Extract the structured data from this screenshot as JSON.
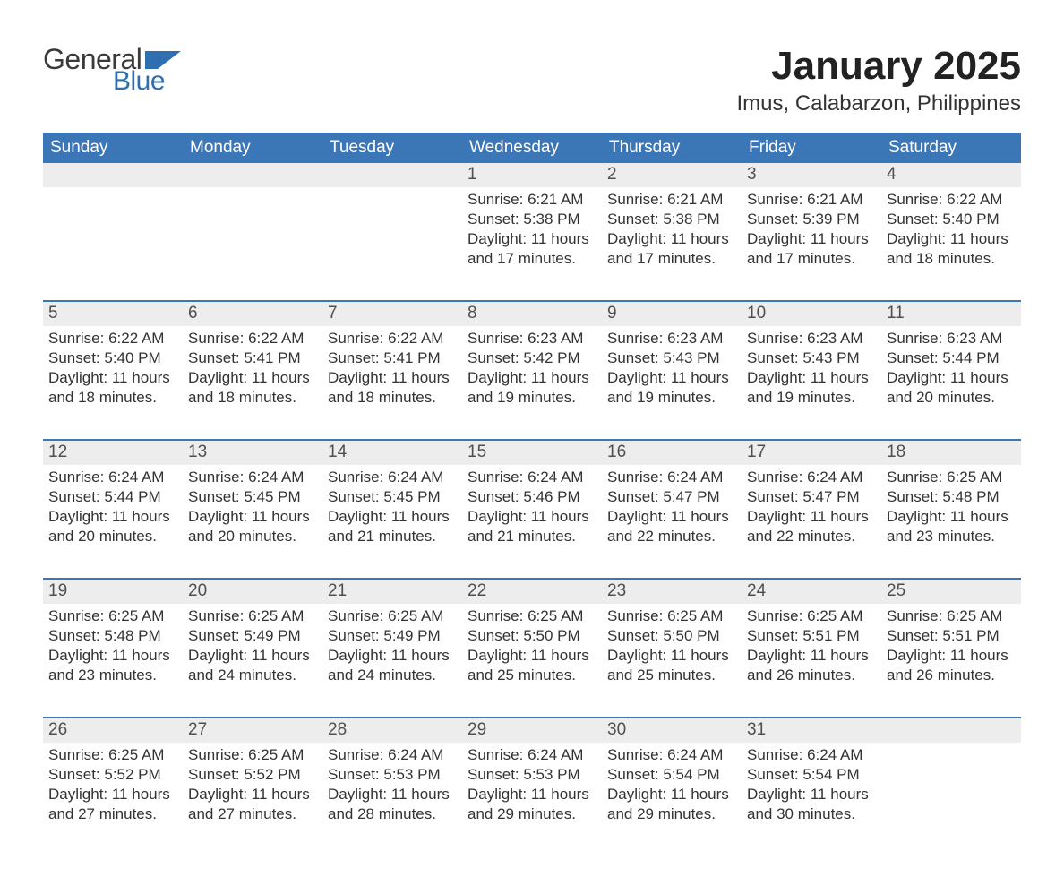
{
  "logo": {
    "text1": "General",
    "text2": "Blue",
    "shape_color": "#2f6fb0",
    "text1_color": "#3a3a3a",
    "text2_color": "#2f6fb0"
  },
  "title": "January 2025",
  "location": "Imus, Calabarzon, Philippines",
  "colors": {
    "header_bg": "#3b76b6",
    "header_text": "#ffffff",
    "daynum_bg": "#ededed",
    "daynum_text": "#4f4f4f",
    "body_text": "#333333",
    "week_divider": "#3b76b6",
    "page_bg": "#ffffff"
  },
  "typography": {
    "title_fontsize": 44,
    "location_fontsize": 24,
    "weekday_fontsize": 19,
    "daynum_fontsize": 19,
    "body_fontsize": 17,
    "font_family": "Arial"
  },
  "calendar": {
    "type": "table",
    "weekdays": [
      "Sunday",
      "Monday",
      "Tuesday",
      "Wednesday",
      "Thursday",
      "Friday",
      "Saturday"
    ],
    "weeks": [
      [
        {
          "day": "",
          "sunrise": "",
          "sunset": "",
          "daylight_l1": "",
          "daylight_l2": ""
        },
        {
          "day": "",
          "sunrise": "",
          "sunset": "",
          "daylight_l1": "",
          "daylight_l2": ""
        },
        {
          "day": "",
          "sunrise": "",
          "sunset": "",
          "daylight_l1": "",
          "daylight_l2": ""
        },
        {
          "day": "1",
          "sunrise": "Sunrise: 6:21 AM",
          "sunset": "Sunset: 5:38 PM",
          "daylight_l1": "Daylight: 11 hours",
          "daylight_l2": "and 17 minutes."
        },
        {
          "day": "2",
          "sunrise": "Sunrise: 6:21 AM",
          "sunset": "Sunset: 5:38 PM",
          "daylight_l1": "Daylight: 11 hours",
          "daylight_l2": "and 17 minutes."
        },
        {
          "day": "3",
          "sunrise": "Sunrise: 6:21 AM",
          "sunset": "Sunset: 5:39 PM",
          "daylight_l1": "Daylight: 11 hours",
          "daylight_l2": "and 17 minutes."
        },
        {
          "day": "4",
          "sunrise": "Sunrise: 6:22 AM",
          "sunset": "Sunset: 5:40 PM",
          "daylight_l1": "Daylight: 11 hours",
          "daylight_l2": "and 18 minutes."
        }
      ],
      [
        {
          "day": "5",
          "sunrise": "Sunrise: 6:22 AM",
          "sunset": "Sunset: 5:40 PM",
          "daylight_l1": "Daylight: 11 hours",
          "daylight_l2": "and 18 minutes."
        },
        {
          "day": "6",
          "sunrise": "Sunrise: 6:22 AM",
          "sunset": "Sunset: 5:41 PM",
          "daylight_l1": "Daylight: 11 hours",
          "daylight_l2": "and 18 minutes."
        },
        {
          "day": "7",
          "sunrise": "Sunrise: 6:22 AM",
          "sunset": "Sunset: 5:41 PM",
          "daylight_l1": "Daylight: 11 hours",
          "daylight_l2": "and 18 minutes."
        },
        {
          "day": "8",
          "sunrise": "Sunrise: 6:23 AM",
          "sunset": "Sunset: 5:42 PM",
          "daylight_l1": "Daylight: 11 hours",
          "daylight_l2": "and 19 minutes."
        },
        {
          "day": "9",
          "sunrise": "Sunrise: 6:23 AM",
          "sunset": "Sunset: 5:43 PM",
          "daylight_l1": "Daylight: 11 hours",
          "daylight_l2": "and 19 minutes."
        },
        {
          "day": "10",
          "sunrise": "Sunrise: 6:23 AM",
          "sunset": "Sunset: 5:43 PM",
          "daylight_l1": "Daylight: 11 hours",
          "daylight_l2": "and 19 minutes."
        },
        {
          "day": "11",
          "sunrise": "Sunrise: 6:23 AM",
          "sunset": "Sunset: 5:44 PM",
          "daylight_l1": "Daylight: 11 hours",
          "daylight_l2": "and 20 minutes."
        }
      ],
      [
        {
          "day": "12",
          "sunrise": "Sunrise: 6:24 AM",
          "sunset": "Sunset: 5:44 PM",
          "daylight_l1": "Daylight: 11 hours",
          "daylight_l2": "and 20 minutes."
        },
        {
          "day": "13",
          "sunrise": "Sunrise: 6:24 AM",
          "sunset": "Sunset: 5:45 PM",
          "daylight_l1": "Daylight: 11 hours",
          "daylight_l2": "and 20 minutes."
        },
        {
          "day": "14",
          "sunrise": "Sunrise: 6:24 AM",
          "sunset": "Sunset: 5:45 PM",
          "daylight_l1": "Daylight: 11 hours",
          "daylight_l2": "and 21 minutes."
        },
        {
          "day": "15",
          "sunrise": "Sunrise: 6:24 AM",
          "sunset": "Sunset: 5:46 PM",
          "daylight_l1": "Daylight: 11 hours",
          "daylight_l2": "and 21 minutes."
        },
        {
          "day": "16",
          "sunrise": "Sunrise: 6:24 AM",
          "sunset": "Sunset: 5:47 PM",
          "daylight_l1": "Daylight: 11 hours",
          "daylight_l2": "and 22 minutes."
        },
        {
          "day": "17",
          "sunrise": "Sunrise: 6:24 AM",
          "sunset": "Sunset: 5:47 PM",
          "daylight_l1": "Daylight: 11 hours",
          "daylight_l2": "and 22 minutes."
        },
        {
          "day": "18",
          "sunrise": "Sunrise: 6:25 AM",
          "sunset": "Sunset: 5:48 PM",
          "daylight_l1": "Daylight: 11 hours",
          "daylight_l2": "and 23 minutes."
        }
      ],
      [
        {
          "day": "19",
          "sunrise": "Sunrise: 6:25 AM",
          "sunset": "Sunset: 5:48 PM",
          "daylight_l1": "Daylight: 11 hours",
          "daylight_l2": "and 23 minutes."
        },
        {
          "day": "20",
          "sunrise": "Sunrise: 6:25 AM",
          "sunset": "Sunset: 5:49 PM",
          "daylight_l1": "Daylight: 11 hours",
          "daylight_l2": "and 24 minutes."
        },
        {
          "day": "21",
          "sunrise": "Sunrise: 6:25 AM",
          "sunset": "Sunset: 5:49 PM",
          "daylight_l1": "Daylight: 11 hours",
          "daylight_l2": "and 24 minutes."
        },
        {
          "day": "22",
          "sunrise": "Sunrise: 6:25 AM",
          "sunset": "Sunset: 5:50 PM",
          "daylight_l1": "Daylight: 11 hours",
          "daylight_l2": "and 25 minutes."
        },
        {
          "day": "23",
          "sunrise": "Sunrise: 6:25 AM",
          "sunset": "Sunset: 5:50 PM",
          "daylight_l1": "Daylight: 11 hours",
          "daylight_l2": "and 25 minutes."
        },
        {
          "day": "24",
          "sunrise": "Sunrise: 6:25 AM",
          "sunset": "Sunset: 5:51 PM",
          "daylight_l1": "Daylight: 11 hours",
          "daylight_l2": "and 26 minutes."
        },
        {
          "day": "25",
          "sunrise": "Sunrise: 6:25 AM",
          "sunset": "Sunset: 5:51 PM",
          "daylight_l1": "Daylight: 11 hours",
          "daylight_l2": "and 26 minutes."
        }
      ],
      [
        {
          "day": "26",
          "sunrise": "Sunrise: 6:25 AM",
          "sunset": "Sunset: 5:52 PM",
          "daylight_l1": "Daylight: 11 hours",
          "daylight_l2": "and 27 minutes."
        },
        {
          "day": "27",
          "sunrise": "Sunrise: 6:25 AM",
          "sunset": "Sunset: 5:52 PM",
          "daylight_l1": "Daylight: 11 hours",
          "daylight_l2": "and 27 minutes."
        },
        {
          "day": "28",
          "sunrise": "Sunrise: 6:24 AM",
          "sunset": "Sunset: 5:53 PM",
          "daylight_l1": "Daylight: 11 hours",
          "daylight_l2": "and 28 minutes."
        },
        {
          "day": "29",
          "sunrise": "Sunrise: 6:24 AM",
          "sunset": "Sunset: 5:53 PM",
          "daylight_l1": "Daylight: 11 hours",
          "daylight_l2": "and 29 minutes."
        },
        {
          "day": "30",
          "sunrise": "Sunrise: 6:24 AM",
          "sunset": "Sunset: 5:54 PM",
          "daylight_l1": "Daylight: 11 hours",
          "daylight_l2": "and 29 minutes."
        },
        {
          "day": "31",
          "sunrise": "Sunrise: 6:24 AM",
          "sunset": "Sunset: 5:54 PM",
          "daylight_l1": "Daylight: 11 hours",
          "daylight_l2": "and 30 minutes."
        },
        {
          "day": "",
          "sunrise": "",
          "sunset": "",
          "daylight_l1": "",
          "daylight_l2": ""
        }
      ]
    ]
  }
}
